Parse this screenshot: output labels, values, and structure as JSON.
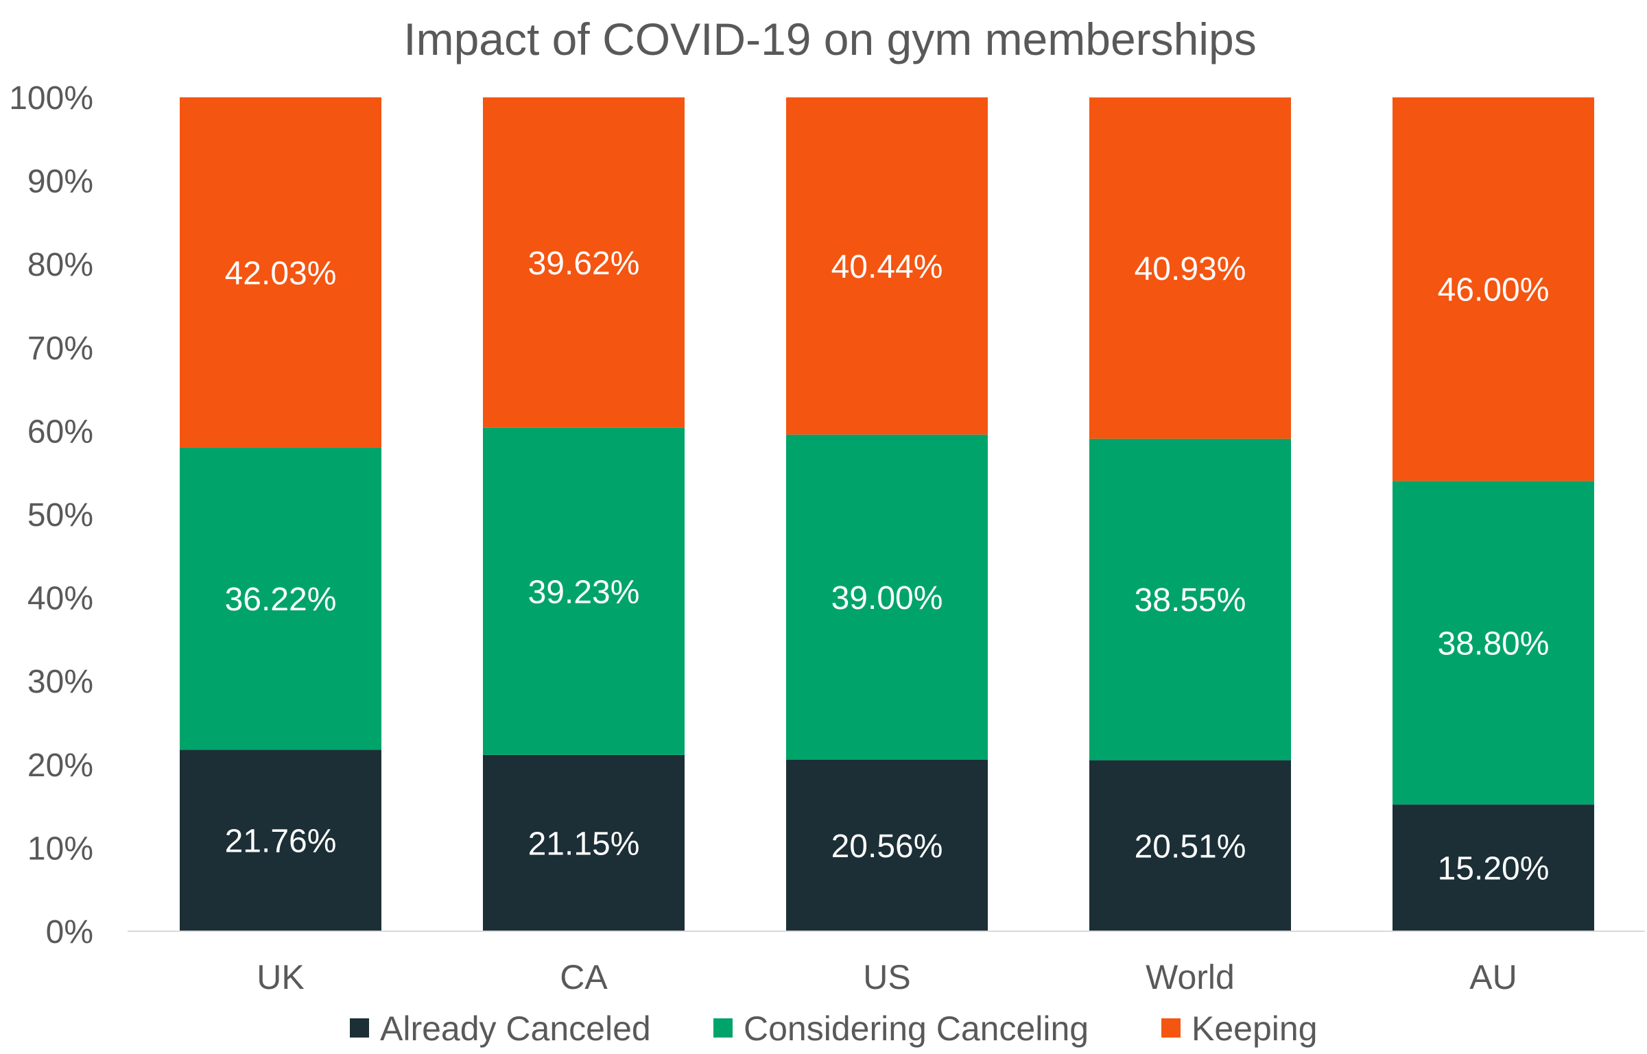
{
  "chart_data": {
    "type": "bar",
    "stacked": true,
    "percent_stacked": true,
    "title": "Impact of COVID-19 on gym memberships",
    "categories": [
      "UK",
      "CA",
      "US",
      "World",
      "AU"
    ],
    "series": [
      {
        "name": "Already Canceled",
        "color": "#1c2f36",
        "values": [
          21.76,
          21.15,
          20.56,
          20.51,
          15.2
        ],
        "labels": [
          "21.76%",
          "21.15%",
          "20.56%",
          "20.51%",
          "15.20%"
        ]
      },
      {
        "name": "Considering Canceling",
        "color": "#00a46a",
        "values": [
          36.22,
          39.23,
          39.0,
          38.55,
          38.8
        ],
        "labels": [
          "36.22%",
          "39.23%",
          "39.00%",
          "38.55%",
          "38.80%"
        ]
      },
      {
        "name": "Keeping",
        "color": "#f45511",
        "values": [
          42.03,
          39.62,
          40.44,
          40.93,
          46.0
        ],
        "labels": [
          "42.03%",
          "39.62%",
          "40.44%",
          "40.93%",
          "46.00%"
        ]
      }
    ],
    "y_ticks": [
      "0%",
      "10%",
      "20%",
      "30%",
      "40%",
      "50%",
      "60%",
      "70%",
      "80%",
      "90%",
      "100%"
    ],
    "ylim": [
      0,
      100
    ],
    "grid": false,
    "legend_position": "bottom"
  }
}
